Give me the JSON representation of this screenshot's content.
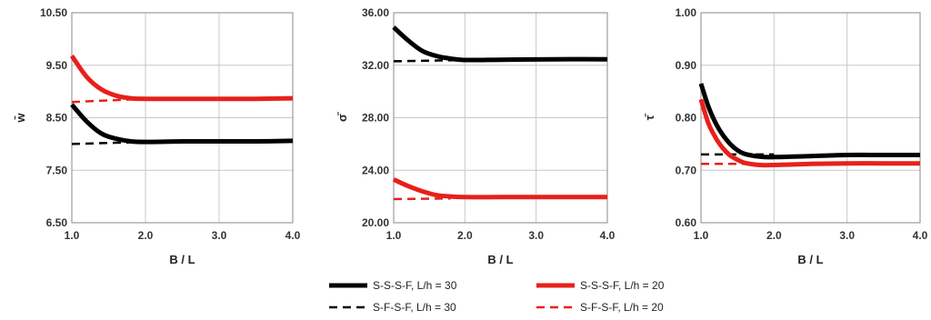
{
  "chart_data": [
    {
      "type": "line",
      "title": "",
      "xlabel": "B / L",
      "ylabel": "w̄",
      "xlim": [
        1.0,
        4.0
      ],
      "ylim": [
        6.5,
        10.5
      ],
      "xticks": [
        "1.0",
        "2.0",
        "3.0",
        "4.0"
      ],
      "yticks": [
        "6.50",
        "7.50",
        "8.50",
        "9.50",
        "10.50"
      ],
      "grid": true,
      "series": [
        {
          "name": "S-S-S-F, L/h = 30",
          "x": [
            1.0,
            1.2,
            1.4,
            1.6,
            1.8,
            2.0,
            2.5,
            3.0,
            3.5,
            4.0
          ],
          "values": [
            8.75,
            8.43,
            8.2,
            8.1,
            8.05,
            8.04,
            8.05,
            8.05,
            8.05,
            8.06
          ]
        },
        {
          "name": "S-F-S-F, L/h = 30",
          "x": [
            1.0,
            2.0
          ],
          "values": [
            8.0,
            8.04
          ]
        },
        {
          "name": "S-S-S-F, L/h = 20",
          "x": [
            1.0,
            1.2,
            1.4,
            1.6,
            1.8,
            2.0,
            2.5,
            3.0,
            3.5,
            4.0
          ],
          "values": [
            9.68,
            9.28,
            9.04,
            8.92,
            8.87,
            8.86,
            8.86,
            8.86,
            8.86,
            8.87
          ]
        },
        {
          "name": "S-F-S-F, L/h = 20",
          "x": [
            1.0,
            2.0
          ],
          "values": [
            8.8,
            8.86
          ]
        }
      ]
    },
    {
      "type": "line",
      "title": "",
      "xlabel": "B / L",
      "ylabel": "σ̄",
      "xlim": [
        1.0,
        4.0
      ],
      "ylim": [
        20.0,
        36.0
      ],
      "xticks": [
        "1.0",
        "2.0",
        "3.0",
        "4.0"
      ],
      "yticks": [
        "20.00",
        "24.00",
        "28.00",
        "32.00",
        "36.00"
      ],
      "grid": true,
      "series": [
        {
          "name": "S-S-S-F, L/h = 30",
          "x": [
            1.0,
            1.2,
            1.4,
            1.6,
            1.8,
            2.0,
            2.5,
            3.0,
            3.5,
            4.0
          ],
          "values": [
            34.9,
            33.9,
            33.1,
            32.7,
            32.5,
            32.4,
            32.42,
            32.44,
            32.46,
            32.45
          ]
        },
        {
          "name": "S-F-S-F, L/h = 30",
          "x": [
            1.0,
            2.0
          ],
          "values": [
            32.3,
            32.4
          ]
        },
        {
          "name": "S-S-S-F, L/h = 20",
          "x": [
            1.0,
            1.2,
            1.4,
            1.6,
            1.8,
            2.0,
            2.5,
            3.0,
            3.5,
            4.0
          ],
          "values": [
            23.3,
            22.8,
            22.4,
            22.1,
            22.0,
            21.95,
            21.95,
            21.95,
            21.95,
            21.95
          ]
        },
        {
          "name": "S-F-S-F, L/h = 20",
          "x": [
            1.0,
            1.8
          ],
          "values": [
            21.8,
            21.85
          ]
        }
      ]
    },
    {
      "type": "line",
      "title": "",
      "xlabel": "B / L",
      "ylabel": "τ̄",
      "xlim": [
        1.0,
        4.0
      ],
      "ylim": [
        0.6,
        1.0
      ],
      "xticks": [
        "1.0",
        "2.0",
        "3.0",
        "4.0"
      ],
      "yticks": [
        "0.60",
        "0.70",
        "0.80",
        "0.90",
        "1.00"
      ],
      "grid": true,
      "series": [
        {
          "name": "S-S-S-F, L/h = 30",
          "x": [
            1.0,
            1.1,
            1.2,
            1.3,
            1.4,
            1.5,
            1.6,
            1.8,
            2.0,
            2.5,
            3.0,
            3.5,
            4.0
          ],
          "values": [
            0.865,
            0.822,
            0.79,
            0.767,
            0.75,
            0.738,
            0.731,
            0.726,
            0.725,
            0.727,
            0.729,
            0.729,
            0.729
          ]
        },
        {
          "name": "S-F-S-F, L/h = 30",
          "x": [
            1.0,
            2.0
          ],
          "values": [
            0.73,
            0.73
          ]
        },
        {
          "name": "S-S-S-F, L/h = 20",
          "x": [
            1.0,
            1.1,
            1.2,
            1.3,
            1.4,
            1.5,
            1.6,
            1.8,
            2.0,
            2.5,
            3.0,
            3.5,
            4.0
          ],
          "values": [
            0.835,
            0.79,
            0.762,
            0.742,
            0.728,
            0.72,
            0.714,
            0.71,
            0.71,
            0.712,
            0.713,
            0.713,
            0.713
          ]
        },
        {
          "name": "S-F-S-F, L/h = 20",
          "x": [
            1.0,
            1.8
          ],
          "values": [
            0.712,
            0.712
          ]
        }
      ]
    }
  ],
  "legend": {
    "placement": "bottom",
    "entries": [
      {
        "label": "S-S-S-F, L/h = 30",
        "color": "#000000",
        "dash": "solid"
      },
      {
        "label": "S-S-S-F, L/h = 20",
        "color": "#e8201a",
        "dash": "solid"
      },
      {
        "label": "S-F-S-F, L/h = 30",
        "color": "#000000",
        "dash": "dashed"
      },
      {
        "label": "S-F-S-F, L/h = 20",
        "color": "#e8201a",
        "dash": "dashed"
      }
    ]
  },
  "colors": {
    "black_series": "#000000",
    "red_series": "#e8201a",
    "grid": "#c8c8c8",
    "axis": "#888888"
  }
}
